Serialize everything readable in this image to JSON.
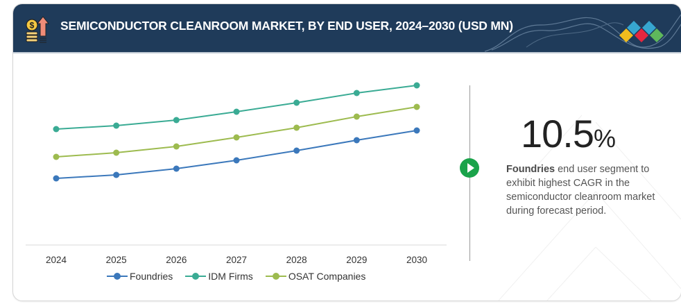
{
  "header": {
    "title": "SEMICONDUCTOR CLEANROOM MARKET, BY END USER, 2024–2030 (USD MN)",
    "left_icon": "coins-growth-arrow-icon",
    "right_logo": "colored-diamonds-logo-icon",
    "background_color": "#1f3b5a"
  },
  "highlight": {
    "value": "10.5",
    "unit": "%",
    "bold_segment": "Foundries",
    "description": " end user segment to exhibit highest CAGR in the semiconductor cleanroom market during forecast period.",
    "play_icon": "play-circle-icon",
    "accent_color": "#1aa34a"
  },
  "chart_data": {
    "type": "line",
    "title": "SEMICONDUCTOR CLEANROOM MARKET, BY END USER, 2024–2030 (USD MN)",
    "xlabel": "",
    "ylabel": "",
    "x": [
      "2024",
      "2025",
      "2026",
      "2027",
      "2028",
      "2029",
      "2030"
    ],
    "ylim": [
      0,
      250
    ],
    "y_axis_visible": false,
    "grid": false,
    "values_note": "Y axis unlabeled; values are relative estimates",
    "legend_position": "bottom-center",
    "series": [
      {
        "name": "Foundries",
        "color": "#3b78bb",
        "values": [
          96,
          101,
          110,
          122,
          136,
          151,
          165
        ]
      },
      {
        "name": "IDM Firms",
        "color": "#3aab94",
        "values": [
          167,
          172,
          180,
          192,
          205,
          219,
          230
        ]
      },
      {
        "name": "OSAT Companies",
        "color": "#9dbb4f",
        "values": [
          127,
          133,
          142,
          155,
          169,
          185,
          199
        ]
      }
    ]
  }
}
